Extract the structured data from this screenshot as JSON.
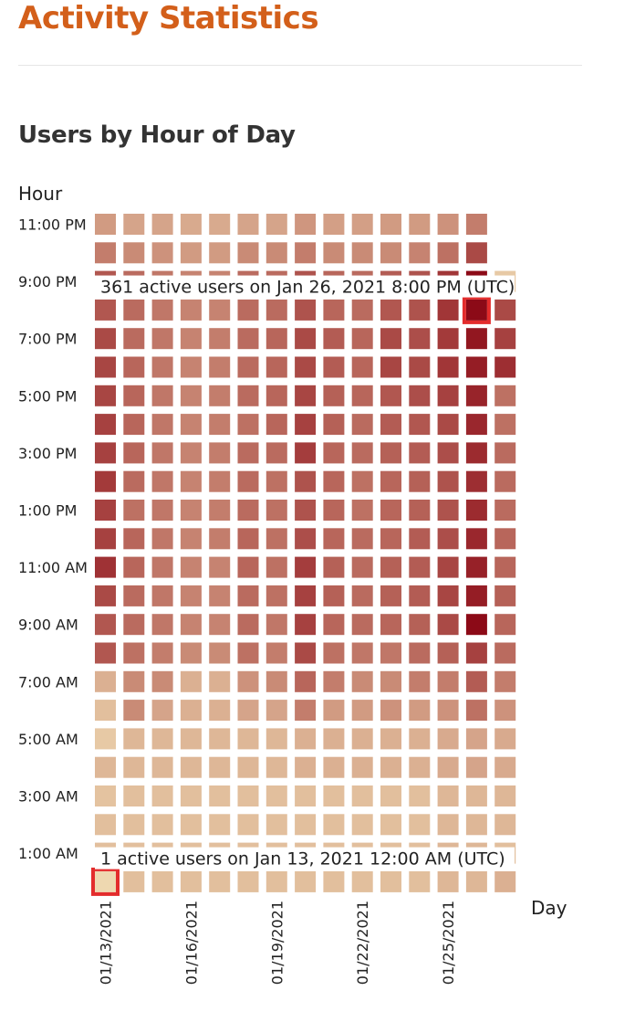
{
  "page": {
    "title": "Activity Statistics",
    "section_title": "Users by Hour of Day"
  },
  "chart_data": {
    "type": "heatmap",
    "title": "Users by Hour of Day",
    "xlabel": "Day",
    "ylabel": "Hour",
    "x_tick_labels": [
      "01/13/2021",
      "01/16/2021",
      "01/19/2021",
      "01/22/2021",
      "01/25/2021"
    ],
    "x_tick_days": [
      "01/13/2021",
      "01/16/2021",
      "01/19/2021",
      "01/22/2021",
      "01/25/2021"
    ],
    "y_tick_labels": [
      "1:00 AM",
      "3:00 AM",
      "5:00 AM",
      "7:00 AM",
      "9:00 AM",
      "11:00 AM",
      "1:00 PM",
      "3:00 PM",
      "5:00 PM",
      "7:00 PM",
      "9:00 PM",
      "11:00 PM"
    ],
    "y_tick_hours": [
      "1:00 AM",
      "3:00 AM",
      "5:00 AM",
      "7:00 AM",
      "9:00 AM",
      "11:00 AM",
      "1:00 PM",
      "3:00 PM",
      "5:00 PM",
      "7:00 PM",
      "9:00 PM",
      "11:00 PM"
    ],
    "days": [
      "01/13/2021",
      "01/14/2021",
      "01/15/2021",
      "01/16/2021",
      "01/17/2021",
      "01/18/2021",
      "01/19/2021",
      "01/20/2021",
      "01/21/2021",
      "01/22/2021",
      "01/23/2021",
      "01/24/2021",
      "01/25/2021",
      "01/26/2021",
      "01/27/2021"
    ],
    "hours": [
      "12:00 AM",
      "1:00 AM",
      "2:00 AM",
      "3:00 AM",
      "4:00 AM",
      "5:00 AM",
      "6:00 AM",
      "7:00 AM",
      "8:00 AM",
      "9:00 AM",
      "10:00 AM",
      "11:00 AM",
      "12:00 PM",
      "1:00 PM",
      "2:00 PM",
      "3:00 PM",
      "4:00 PM",
      "5:00 PM",
      "6:00 PM",
      "7:00 PM",
      "8:00 PM",
      "9:00 PM",
      "10:00 PM",
      "11:00 PM"
    ],
    "values": [
      [
        1,
        10,
        10,
        10,
        10,
        10,
        10,
        10,
        10,
        10,
        10,
        10,
        15,
        15,
        20
      ],
      [
        10,
        10,
        10,
        10,
        10,
        10,
        10,
        10,
        10,
        10,
        10,
        10,
        15,
        15,
        10
      ],
      [
        10,
        10,
        10,
        10,
        10,
        10,
        10,
        10,
        10,
        10,
        10,
        10,
        15,
        15,
        15
      ],
      [
        8,
        10,
        10,
        10,
        10,
        10,
        10,
        10,
        10,
        10,
        10,
        10,
        15,
        15,
        15
      ],
      [
        15,
        15,
        15,
        15,
        15,
        15,
        15,
        20,
        20,
        20,
        20,
        20,
        25,
        30,
        25
      ],
      [
        5,
        15,
        15,
        15,
        15,
        15,
        15,
        20,
        20,
        20,
        20,
        20,
        25,
        30,
        25
      ],
      [
        10,
        60,
        30,
        20,
        20,
        30,
        30,
        80,
        40,
        40,
        50,
        40,
        50,
        100,
        50
      ],
      [
        20,
        60,
        60,
        20,
        20,
        50,
        60,
        120,
        80,
        60,
        60,
        80,
        80,
        140,
        80
      ],
      [
        150,
        100,
        80,
        60,
        60,
        100,
        80,
        180,
        100,
        90,
        90,
        110,
        130,
        200,
        110
      ],
      [
        150,
        110,
        90,
        70,
        70,
        110,
        90,
        200,
        120,
        110,
        120,
        130,
        180,
        361,
        120
      ],
      [
        180,
        110,
        90,
        70,
        70,
        110,
        100,
        200,
        130,
        110,
        130,
        140,
        190,
        300,
        130
      ],
      [
        240,
        120,
        90,
        70,
        70,
        120,
        100,
        210,
        130,
        110,
        130,
        140,
        190,
        290,
        120
      ],
      [
        200,
        120,
        90,
        70,
        80,
        120,
        100,
        170,
        120,
        110,
        120,
        140,
        170,
        270,
        120
      ],
      [
        200,
        100,
        90,
        70,
        80,
        110,
        100,
        160,
        120,
        100,
        120,
        130,
        160,
        260,
        110
      ],
      [
        220,
        110,
        90,
        70,
        80,
        110,
        100,
        160,
        120,
        100,
        120,
        130,
        160,
        250,
        110
      ],
      [
        200,
        120,
        90,
        70,
        80,
        110,
        110,
        210,
        120,
        110,
        130,
        140,
        170,
        260,
        110
      ],
      [
        200,
        120,
        90,
        70,
        80,
        100,
        120,
        200,
        130,
        110,
        140,
        150,
        180,
        270,
        100
      ],
      [
        190,
        120,
        90,
        70,
        80,
        110,
        120,
        190,
        130,
        120,
        150,
        170,
        200,
        280,
        100
      ],
      [
        190,
        120,
        90,
        70,
        80,
        110,
        120,
        180,
        140,
        120,
        190,
        180,
        230,
        300,
        250
      ],
      [
        180,
        110,
        90,
        70,
        80,
        110,
        120,
        180,
        140,
        120,
        180,
        170,
        220,
        320,
        200
      ],
      [
        150,
        110,
        90,
        70,
        70,
        110,
        110,
        160,
        120,
        110,
        150,
        160,
        230,
        361,
        180
      ],
      [
        150,
        110,
        90,
        70,
        70,
        110,
        110,
        160,
        120,
        110,
        140,
        160,
        230,
        361,
        5
      ],
      [
        80,
        60,
        50,
        40,
        40,
        60,
        60,
        80,
        60,
        60,
        60,
        70,
        100,
        180,
        0
      ],
      [
        40,
        30,
        30,
        25,
        25,
        30,
        30,
        45,
        35,
        35,
        40,
        40,
        50,
        80,
        0
      ]
    ],
    "value_range": [
      0,
      361
    ],
    "color_low": "#f3e3b8",
    "color_high": "#8c0a17",
    "highlight_color": "#e32c2c",
    "highlights": [
      {
        "day": "01/26/2021",
        "hour": "8:00 PM",
        "label": "361 active users on Jan 26, 2021 8:00 PM (UTC)"
      },
      {
        "day": "01/13/2021",
        "hour": "12:00 AM",
        "label": "1 active users on Jan 13, 2021 12:00 AM (UTC)"
      }
    ],
    "grid": false,
    "legend": "none"
  }
}
